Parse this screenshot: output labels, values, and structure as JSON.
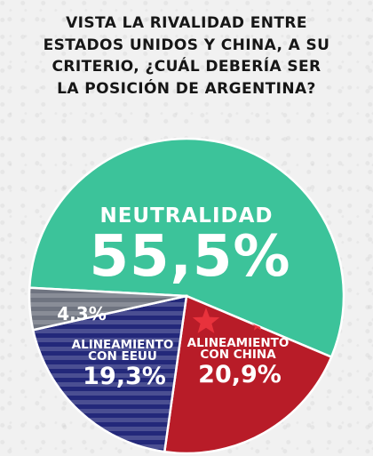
{
  "title": "VISTA LA RIVALIDAD ENTRE ESTADOS UNIDOS Y CHINA, A SU CRITERIO, ¿CUÁL DEBERÍA SER LA POSICIÓN DE ARGENTINA?",
  "title_lines": [
    "VISTA LA RIVALIDAD ENTRE",
    "ESTADOS UNIDOS Y CHINA, A SU",
    "CRITERIO, ¿CUÁL DEBERÍA SER",
    "LA POSICIÓN DE ARGENTINA?"
  ],
  "chart_data": {
    "type": "pie",
    "slices": [
      {
        "label": "NEUTRALIDAD",
        "value_text": "55,5%",
        "value": 55.5,
        "color": "#3cc39a"
      },
      {
        "label": "ALINEAMIENTO CON CHINA",
        "label_lines": [
          "ALINEAMIENTO",
          "CON CHINA"
        ],
        "value_text": "20,9%",
        "value": 20.9,
        "color": "#b81c28"
      },
      {
        "label": "ALINEAMIENTO CON EEUU",
        "label_lines": [
          "ALINEAMIENTO",
          "CON EEUU"
        ],
        "value_text": "19,3%",
        "value": 19.3,
        "color": "#23287a"
      },
      {
        "label": "",
        "value_text": "4,3%",
        "value": 4.3,
        "color": "#6f7480"
      }
    ]
  }
}
